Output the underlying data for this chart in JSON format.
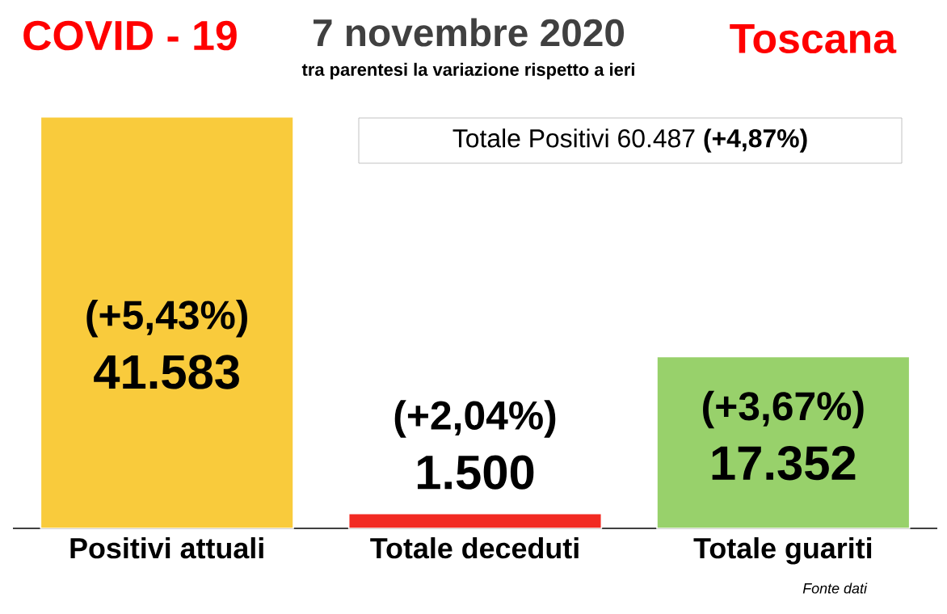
{
  "chart_data": {
    "type": "bar",
    "title": "7 novembre 2020",
    "subtitle": "tra parentesi la variazione rispetto a ieri",
    "categories": [
      "Positivi attuali",
      "Totale deceduti",
      "Totale guariti"
    ],
    "values": [
      41583,
      1500,
      17352
    ],
    "colors": [
      "#f9cb3c",
      "#f22a22",
      "#98d16b"
    ],
    "value_labels": [
      "41.583",
      "1.500",
      "17.352"
    ],
    "tick_labels": "x",
    "annotations": [
      "(+5,43%)",
      "(+2,04%)",
      "(+3,67%)",
      "COVID - 19",
      "Toscana",
      "Totale Positivi     60.487 **(+4,87%)**",
      "Fonte dati"
    ]
  }
}
